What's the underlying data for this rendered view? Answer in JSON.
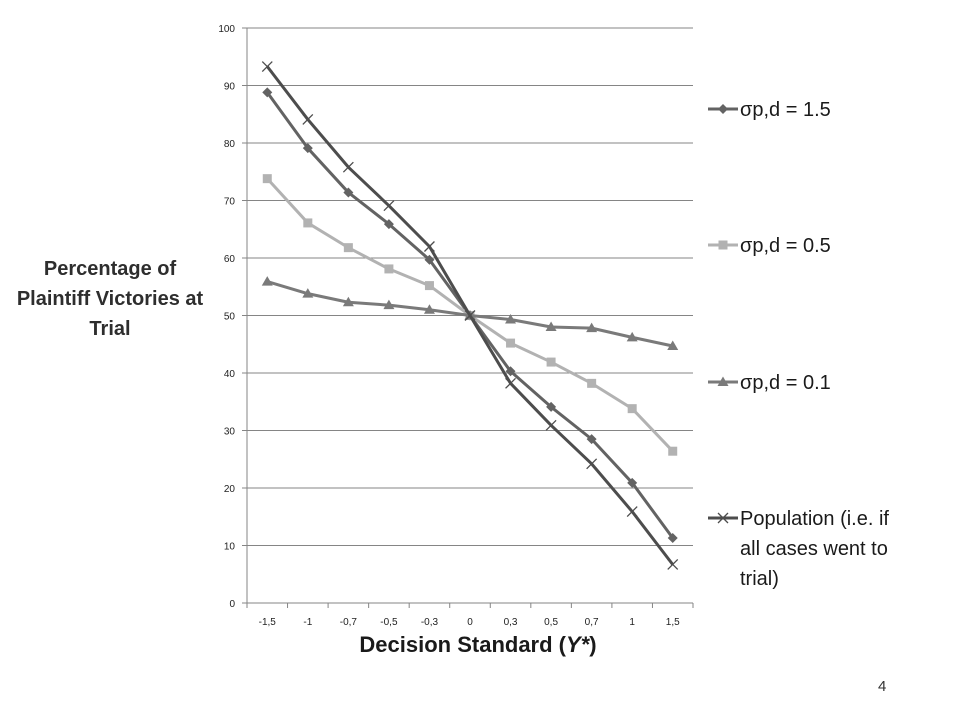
{
  "page_number": "4",
  "chart_data": {
    "type": "line",
    "ylabel": "Percentage of Plaintiff Victories at Trial",
    "xlabel_main": "Decision Standard (",
    "xlabel_var": "Y*",
    "xlabel_end": ")",
    "categories": [
      "-1,5",
      "-1",
      "-0,7",
      "-0,5",
      "-0,3",
      "0",
      "0,3",
      "0,5",
      "0,7",
      "1",
      "1,5"
    ],
    "ylim": [
      0,
      100
    ],
    "yticks": [
      "0",
      "10",
      "20",
      "30",
      "40",
      "50",
      "60",
      "70",
      "80",
      "90",
      "100"
    ],
    "grid": "horizontal",
    "legend": "right",
    "series": [
      {
        "name": "σp,d = 1.5",
        "marker": "diamond",
        "color": "#636363",
        "values": [
          88.8,
          79.1,
          71.4,
          65.9,
          59.7,
          50,
          40.3,
          34.1,
          28.5,
          20.9,
          11.3
        ]
      },
      {
        "name": "σp,d = 0.5",
        "marker": "square",
        "color": "#b2b2b2",
        "values": [
          73.8,
          66.1,
          61.8,
          58.1,
          55.2,
          50,
          45.2,
          41.9,
          38.2,
          33.8,
          26.4
        ]
      },
      {
        "name": "σp,d = 0.1",
        "marker": "triangle",
        "color": "#7a7a7a",
        "values": [
          55.9,
          53.8,
          52.3,
          51.8,
          51.0,
          50,
          49.3,
          48.0,
          47.8,
          46.2,
          44.7
        ]
      },
      {
        "name": "Population (i.e. if all cases went to trial)",
        "marker": "x",
        "color": "#4d4d4d",
        "values": [
          93.3,
          84.1,
          75.8,
          69.1,
          62.0,
          50,
          38.2,
          30.9,
          24.2,
          15.9,
          6.7
        ]
      }
    ]
  }
}
